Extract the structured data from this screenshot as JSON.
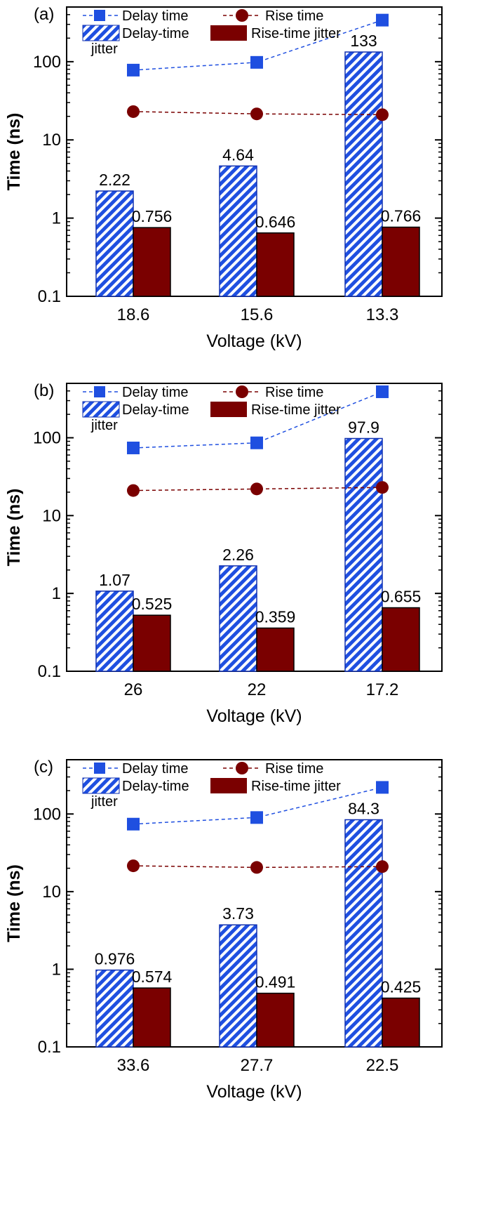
{
  "y_axis_label": "Time (ns)",
  "x_axis_label": "Voltage (kV)",
  "legend": {
    "delay_time": "Delay time",
    "rise_time": "Rise time",
    "delay_jitter": "Delay-time jitter",
    "rise_jitter": "Rise-time jitter"
  },
  "colors": {
    "delay": "#1f4fe0",
    "delay_stroke": "#1030b0",
    "rise": "#7a0000",
    "hatch_bg": "#ffffff"
  },
  "chart_data": [
    {
      "type": "bar",
      "panel": "(a)",
      "scale": "log",
      "ylim": [
        0.1,
        500
      ],
      "yticks": [
        "0.1",
        "1",
        "10",
        "100"
      ],
      "categories": [
        "18.6",
        "15.6",
        "13.3"
      ],
      "series": [
        {
          "name": "Delay-time jitter",
          "kind": "bar",
          "values": [
            2.22,
            4.64,
            133
          ],
          "labels": [
            "2.22",
            "4.64",
            "133"
          ]
        },
        {
          "name": "Rise-time jitter",
          "kind": "bar",
          "values": [
            0.756,
            0.646,
            0.766
          ],
          "labels": [
            "0.756",
            "0.646",
            "0.766"
          ]
        },
        {
          "name": "Delay time",
          "kind": "line",
          "values": [
            78,
            98,
            340
          ]
        },
        {
          "name": "Rise time",
          "kind": "line",
          "values": [
            23,
            21.5,
            21
          ]
        }
      ]
    },
    {
      "type": "bar",
      "panel": "(b)",
      "scale": "log",
      "ylim": [
        0.1,
        500
      ],
      "yticks": [
        "0.1",
        "1",
        "10",
        "100"
      ],
      "categories": [
        "26",
        "22",
        "17.2"
      ],
      "series": [
        {
          "name": "Delay-time jitter",
          "kind": "bar",
          "values": [
            1.07,
            2.26,
            97.9
          ],
          "labels": [
            "1.07",
            "2.26",
            "97.9"
          ]
        },
        {
          "name": "Rise-time jitter",
          "kind": "bar",
          "values": [
            0.525,
            0.359,
            0.655
          ],
          "labels": [
            "0.525",
            "0.359",
            "0.655"
          ]
        },
        {
          "name": "Delay time",
          "kind": "line",
          "values": [
            74,
            86,
            390
          ]
        },
        {
          "name": "Rise time",
          "kind": "line",
          "values": [
            21,
            22,
            23
          ]
        }
      ]
    },
    {
      "type": "bar",
      "panel": "(c)",
      "scale": "log",
      "ylim": [
        0.1,
        500
      ],
      "yticks": [
        "0.1",
        "1",
        "10",
        "100"
      ],
      "categories": [
        "33.6",
        "27.7",
        "22.5"
      ],
      "series": [
        {
          "name": "Delay-time jitter",
          "kind": "bar",
          "values": [
            0.976,
            3.73,
            84.3
          ],
          "labels": [
            "0.976",
            "3.73",
            "84.3"
          ]
        },
        {
          "name": "Rise-time jitter",
          "kind": "bar",
          "values": [
            0.574,
            0.491,
            0.425
          ],
          "labels": [
            "0.574",
            "0.491",
            "0.425"
          ]
        },
        {
          "name": "Delay time",
          "kind": "line",
          "values": [
            74,
            90,
            220
          ]
        },
        {
          "name": "Rise time",
          "kind": "line",
          "values": [
            21.5,
            20.5,
            21
          ]
        }
      ]
    }
  ]
}
